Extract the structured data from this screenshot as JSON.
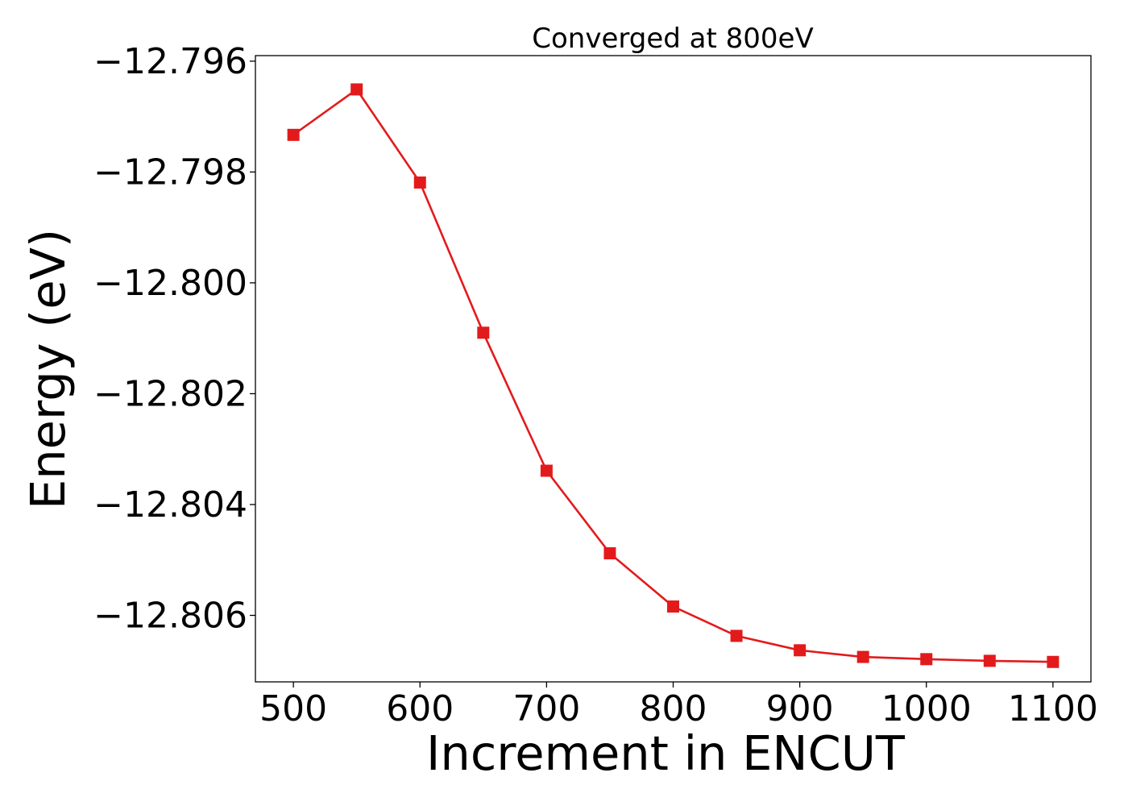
{
  "chart_data": {
    "type": "line",
    "title": "Converged at 800eV",
    "xlabel": "Increment in ENCUT",
    "ylabel": "Energy (eV)",
    "xlim": [
      470,
      1130
    ],
    "ylim": [
      -12.8072,
      -12.7959
    ],
    "xticks": [
      500,
      600,
      700,
      800,
      900,
      1000,
      1100
    ],
    "xtick_labels": [
      "500",
      "600",
      "700",
      "800",
      "900",
      "1000",
      "1100"
    ],
    "yticks": [
      -12.796,
      -12.798,
      -12.8,
      -12.802,
      -12.804,
      -12.806
    ],
    "ytick_labels": [
      "−12.796",
      "−12.798",
      "−12.800",
      "−12.802",
      "−12.804",
      "−12.806"
    ],
    "grid": false,
    "marker": "square",
    "series": [
      {
        "color": "#e31a1c",
        "x": [
          500,
          550,
          600,
          650,
          700,
          750,
          800,
          850,
          900,
          950,
          1000,
          1050,
          1100
        ],
        "y": [
          -12.79733,
          -12.79651,
          -12.79819,
          -12.8009,
          -12.80339,
          -12.80488,
          -12.80584,
          -12.80637,
          -12.80663,
          -12.80675,
          -12.80679,
          -12.80682,
          -12.80684
        ]
      }
    ]
  }
}
